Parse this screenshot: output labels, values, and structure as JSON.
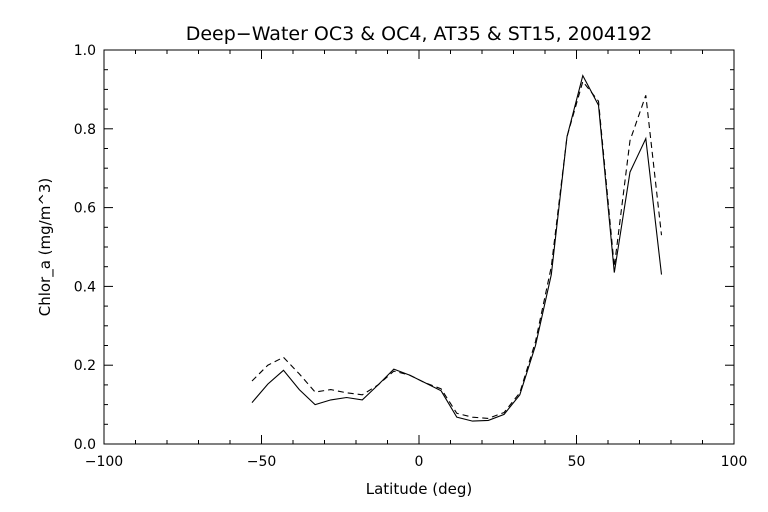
{
  "chart_data": {
    "type": "line",
    "title": "Deep−Water OC3 & OC4, AT35 & ST15, 2004192",
    "xlabel": "Latitude (deg)",
    "ylabel": "Chlor_a (mg/m^3)",
    "xlim": [
      -100,
      100
    ],
    "ylim": [
      0.0,
      1.0
    ],
    "xticks": [
      -100,
      -50,
      0,
      50,
      100
    ],
    "xtick_labels": [
      "−100",
      "−50",
      "0",
      "50",
      "100"
    ],
    "yticks": [
      0.0,
      0.2,
      0.4,
      0.6,
      0.8,
      1.0
    ],
    "ytick_labels": [
      "0.0",
      "0.2",
      "0.4",
      "0.6",
      "0.8",
      "1.0"
    ],
    "x_minor_step": 10,
    "y_minor_step": 0.05,
    "grid": false,
    "series": [
      {
        "style": "solid",
        "color": "#000000",
        "x": [
          -53,
          -48,
          -43,
          -38,
          -33,
          -28,
          -23,
          -18,
          -13,
          -8,
          -3,
          2,
          7,
          12,
          17,
          22,
          27,
          32,
          37,
          42,
          47,
          52,
          57,
          62,
          67,
          72,
          77
        ],
        "y": [
          0.105,
          0.152,
          0.187,
          0.138,
          0.1,
          0.112,
          0.118,
          0.112,
          0.15,
          0.19,
          0.175,
          0.155,
          0.135,
          0.068,
          0.058,
          0.06,
          0.075,
          0.125,
          0.25,
          0.43,
          0.78,
          0.935,
          0.86,
          0.435,
          0.69,
          0.775,
          0.43
        ]
      },
      {
        "style": "dashed",
        "color": "#000000",
        "x": [
          -53,
          -48,
          -43,
          -38,
          -33,
          -28,
          -23,
          -18,
          -13,
          -8,
          -3,
          2,
          7,
          12,
          17,
          22,
          27,
          32,
          37,
          42,
          47,
          52,
          57,
          62,
          67,
          72,
          77
        ],
        "y": [
          0.16,
          0.2,
          0.22,
          0.178,
          0.132,
          0.138,
          0.13,
          0.125,
          0.15,
          0.185,
          0.175,
          0.155,
          0.14,
          0.078,
          0.068,
          0.065,
          0.08,
          0.13,
          0.26,
          0.45,
          0.78,
          0.92,
          0.87,
          0.45,
          0.77,
          0.885,
          0.53
        ]
      }
    ]
  }
}
